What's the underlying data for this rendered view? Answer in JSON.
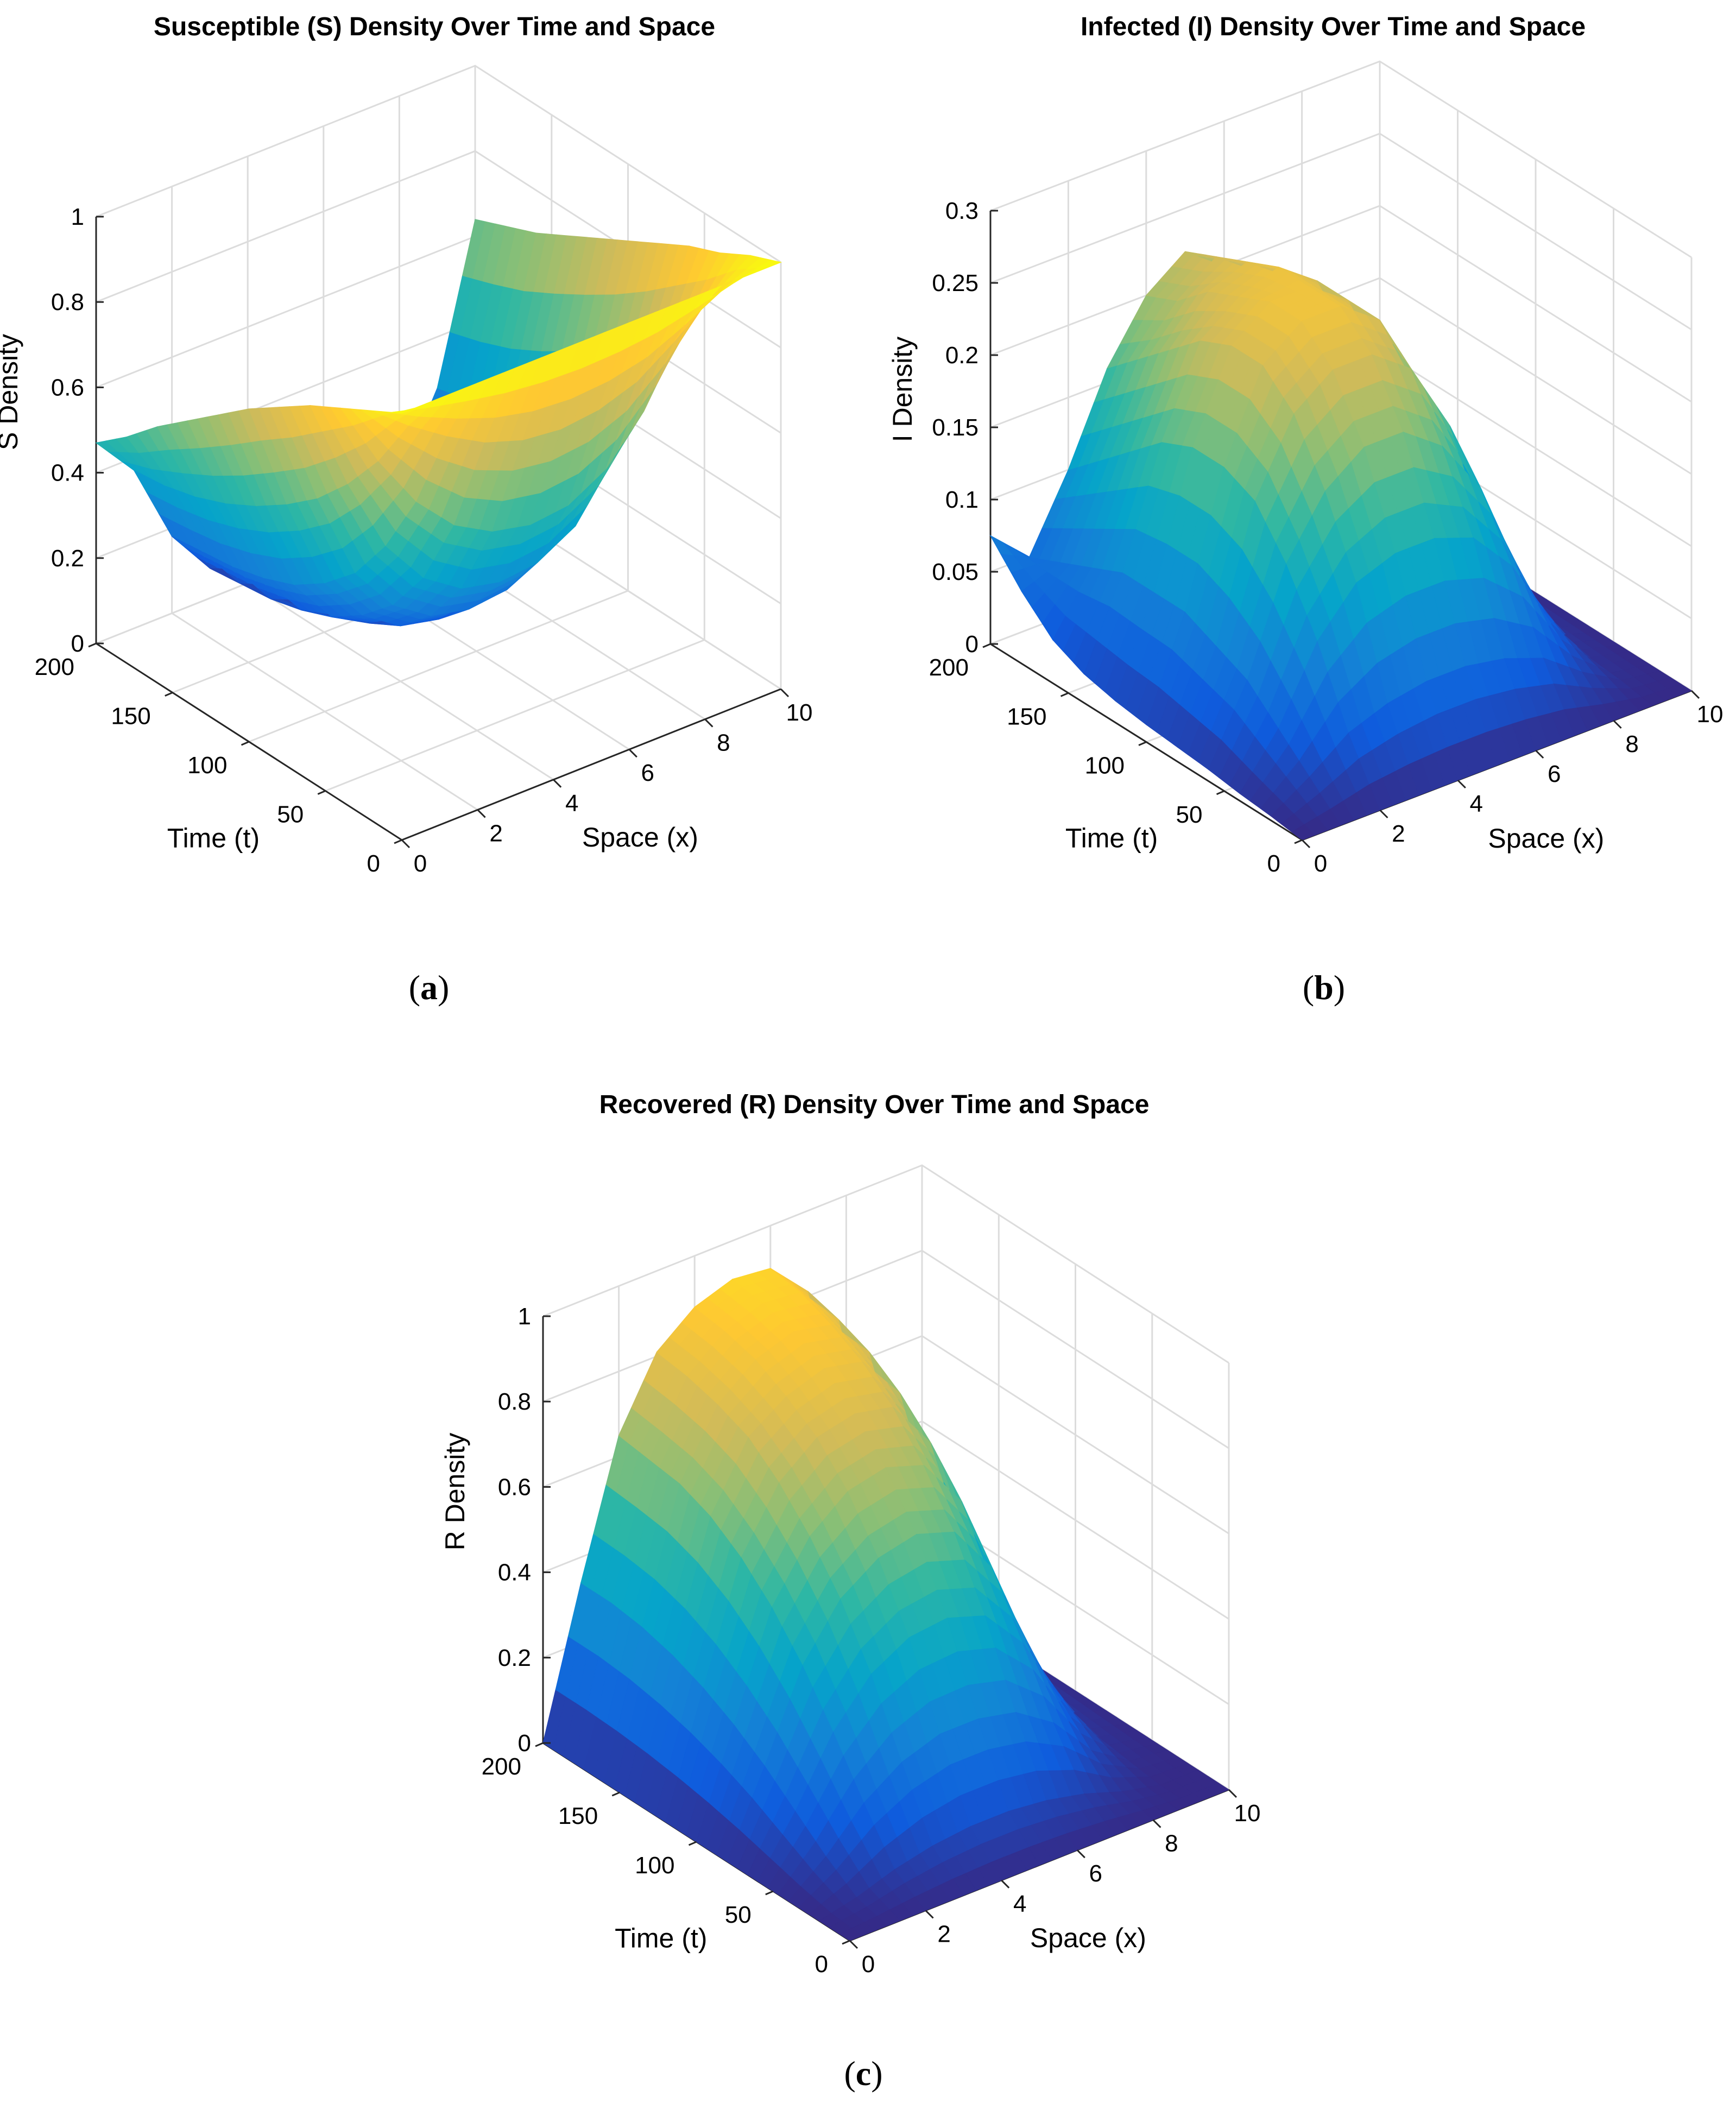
{
  "colors": {
    "colormap": [
      "#352a87",
      "#0f5cdd",
      "#1481d6",
      "#06a4ca",
      "#2eb7a4",
      "#87bf77",
      "#d1bb59",
      "#fec832",
      "#f9fb0e"
    ],
    "grid": "#dcdcdc",
    "axis": "#262626"
  },
  "chart_data": [
    {
      "type": "surface",
      "panel_label": {
        "open": "(",
        "letter": "a",
        "close": ")"
      },
      "title": "Susceptible (S) Density Over Time and Space",
      "xlabel": "Space (x)",
      "ylabel": "Time (t)",
      "zlabel": "S Density",
      "xlim": [
        0,
        10
      ],
      "ylim": [
        0,
        200
      ],
      "zlim": [
        0,
        1
      ],
      "xticks": [
        0,
        2,
        4,
        6,
        8,
        10
      ],
      "yticks": [
        0,
        50,
        100,
        150,
        200
      ],
      "zticks": [
        0,
        0.2,
        0.4,
        0.6,
        0.8,
        1
      ],
      "xtick_labels": [
        "0",
        "2",
        "4",
        "6",
        "8",
        "10"
      ],
      "ytick_labels": [
        "0",
        "50",
        "100",
        "150",
        "200"
      ],
      "ztick_labels": [
        "0",
        "0.2",
        "0.4",
        "0.6",
        "0.8",
        "1"
      ],
      "surface_grid": {
        "x": [
          0,
          1,
          2,
          3,
          4,
          5,
          6,
          7,
          8,
          9,
          10
        ],
        "t": [
          0,
          20,
          40,
          60,
          80,
          100,
          120,
          140,
          160,
          180,
          200
        ],
        "z_by_t": [
          [
            1.0,
            1.0,
            1.0,
            1.0,
            1.0,
            1.0,
            1.0,
            1.0,
            1.0,
            1.0,
            1.0
          ],
          [
            0.96,
            0.89,
            0.83,
            0.78,
            0.75,
            0.74,
            0.75,
            0.78,
            0.84,
            0.91,
            0.97
          ],
          [
            0.92,
            0.76,
            0.63,
            0.54,
            0.49,
            0.47,
            0.48,
            0.53,
            0.63,
            0.78,
            0.93
          ],
          [
            0.88,
            0.66,
            0.48,
            0.37,
            0.31,
            0.29,
            0.3,
            0.35,
            0.47,
            0.66,
            0.9
          ],
          [
            0.83,
            0.58,
            0.37,
            0.26,
            0.2,
            0.18,
            0.19,
            0.24,
            0.35,
            0.56,
            0.86
          ],
          [
            0.78,
            0.52,
            0.3,
            0.19,
            0.13,
            0.11,
            0.12,
            0.16,
            0.26,
            0.48,
            0.82
          ],
          [
            0.72,
            0.47,
            0.25,
            0.14,
            0.09,
            0.07,
            0.08,
            0.11,
            0.2,
            0.42,
            0.78
          ],
          [
            0.66,
            0.43,
            0.22,
            0.11,
            0.06,
            0.05,
            0.05,
            0.08,
            0.16,
            0.37,
            0.74
          ],
          [
            0.6,
            0.4,
            0.2,
            0.09,
            0.05,
            0.04,
            0.04,
            0.06,
            0.13,
            0.33,
            0.7
          ],
          [
            0.53,
            0.38,
            0.19,
            0.08,
            0.04,
            0.03,
            0.03,
            0.05,
            0.11,
            0.3,
            0.67
          ],
          [
            0.47,
            0.37,
            0.18,
            0.07,
            0.03,
            0.02,
            0.02,
            0.04,
            0.1,
            0.28,
            0.64
          ]
        ]
      }
    },
    {
      "type": "surface",
      "panel_label": {
        "open": "(",
        "letter": "b",
        "close": ")"
      },
      "title": "Infected (I) Density Over Time and Space",
      "xlabel": "Space (x)",
      "ylabel": "Time (t)",
      "zlabel": "I Density",
      "xlim": [
        0,
        10
      ],
      "ylim": [
        0,
        200
      ],
      "zlim": [
        0,
        0.3
      ],
      "xticks": [
        0,
        2,
        4,
        6,
        8,
        10
      ],
      "yticks": [
        0,
        50,
        100,
        150,
        200
      ],
      "zticks": [
        0,
        0.05,
        0.1,
        0.15,
        0.2,
        0.25,
        0.3
      ],
      "xtick_labels": [
        "0",
        "2",
        "4",
        "6",
        "8",
        "10"
      ],
      "ytick_labels": [
        "0",
        "50",
        "100",
        "150",
        "200"
      ],
      "ztick_labels": [
        "0",
        "0.05",
        "0.1",
        "0.15",
        "0.2",
        "0.25",
        "0.3"
      ],
      "surface_grid": {
        "x": [
          0,
          1,
          2,
          3,
          4,
          5,
          6,
          7,
          8,
          9,
          10
        ],
        "t": [
          0,
          20,
          40,
          60,
          80,
          100,
          120,
          140,
          160,
          180,
          200
        ],
        "z_by_t": [
          [
            0.0,
            0.0,
            0.0,
            0.0,
            0.0,
            0.0,
            0.0,
            0.0,
            0.0,
            0.0,
            0.0
          ],
          [
            0.003,
            0.02,
            0.04,
            0.05,
            0.055,
            0.055,
            0.05,
            0.04,
            0.02,
            0.004,
            0.0
          ],
          [
            0.005,
            0.04,
            0.09,
            0.12,
            0.13,
            0.13,
            0.12,
            0.09,
            0.04,
            0.006,
            0.0
          ],
          [
            0.008,
            0.06,
            0.13,
            0.17,
            0.19,
            0.19,
            0.17,
            0.13,
            0.06,
            0.008,
            0.0
          ],
          [
            0.01,
            0.07,
            0.16,
            0.21,
            0.23,
            0.23,
            0.21,
            0.16,
            0.07,
            0.01,
            0.0
          ],
          [
            0.012,
            0.08,
            0.17,
            0.23,
            0.25,
            0.25,
            0.23,
            0.17,
            0.08,
            0.012,
            0.0
          ],
          [
            0.015,
            0.08,
            0.17,
            0.23,
            0.25,
            0.25,
            0.23,
            0.17,
            0.08,
            0.012,
            0.0
          ],
          [
            0.02,
            0.08,
            0.16,
            0.22,
            0.24,
            0.25,
            0.23,
            0.17,
            0.08,
            0.012,
            0.0
          ],
          [
            0.03,
            0.07,
            0.14,
            0.2,
            0.23,
            0.24,
            0.22,
            0.16,
            0.07,
            0.01,
            0.0
          ],
          [
            0.05,
            0.06,
            0.12,
            0.18,
            0.21,
            0.23,
            0.21,
            0.15,
            0.07,
            0.01,
            0.0
          ],
          [
            0.075,
            0.05,
            0.1,
            0.16,
            0.2,
            0.22,
            0.2,
            0.14,
            0.06,
            0.01,
            0.0
          ]
        ]
      }
    },
    {
      "type": "surface",
      "panel_label": {
        "open": "(",
        "letter": "c",
        "close": ")"
      },
      "title": "Recovered (R) Density Over Time and Space",
      "xlabel": "Space (x)",
      "ylabel": "Time (t)",
      "zlabel": "R Density",
      "xlim": [
        0,
        10
      ],
      "ylim": [
        0,
        200
      ],
      "zlim": [
        0,
        1
      ],
      "xticks": [
        0,
        2,
        4,
        6,
        8,
        10
      ],
      "yticks": [
        0,
        50,
        100,
        150,
        200
      ],
      "zticks": [
        0,
        0.2,
        0.4,
        0.6,
        0.8,
        1
      ],
      "xtick_labels": [
        "0",
        "2",
        "4",
        "6",
        "8",
        "10"
      ],
      "ytick_labels": [
        "0",
        "50",
        "100",
        "150",
        "200"
      ],
      "ztick_labels": [
        "0",
        "0.2",
        "0.4",
        "0.6",
        "0.8",
        "1"
      ],
      "surface_grid": {
        "x": [
          0,
          1,
          2,
          3,
          4,
          5,
          6,
          7,
          8,
          9,
          10
        ],
        "t": [
          0,
          20,
          40,
          60,
          80,
          100,
          120,
          140,
          160,
          180,
          200
        ],
        "z_by_t": [
          [
            0.0,
            0.0,
            0.0,
            0.0,
            0.0,
            0.0,
            0.0,
            0.0,
            0.0,
            0.0,
            0.0
          ],
          [
            0.0,
            0.02,
            0.05,
            0.07,
            0.08,
            0.08,
            0.07,
            0.05,
            0.02,
            0.0,
            0.0
          ],
          [
            0.0,
            0.07,
            0.16,
            0.22,
            0.25,
            0.25,
            0.23,
            0.17,
            0.07,
            0.01,
            0.0
          ],
          [
            0.0,
            0.13,
            0.28,
            0.38,
            0.43,
            0.44,
            0.41,
            0.31,
            0.14,
            0.02,
            0.0
          ],
          [
            0.0,
            0.19,
            0.39,
            0.51,
            0.57,
            0.59,
            0.56,
            0.44,
            0.21,
            0.03,
            0.0
          ],
          [
            0.0,
            0.24,
            0.48,
            0.61,
            0.68,
            0.7,
            0.67,
            0.55,
            0.28,
            0.04,
            0.0
          ],
          [
            0.0,
            0.28,
            0.55,
            0.69,
            0.76,
            0.78,
            0.76,
            0.64,
            0.33,
            0.05,
            0.0
          ],
          [
            0.0,
            0.31,
            0.6,
            0.75,
            0.81,
            0.84,
            0.82,
            0.71,
            0.38,
            0.06,
            0.0
          ],
          [
            0.0,
            0.33,
            0.63,
            0.78,
            0.85,
            0.88,
            0.86,
            0.76,
            0.41,
            0.06,
            0.0
          ],
          [
            0.0,
            0.34,
            0.64,
            0.8,
            0.87,
            0.9,
            0.89,
            0.79,
            0.43,
            0.07,
            0.0
          ],
          [
            0.0,
            0.34,
            0.65,
            0.81,
            0.88,
            0.91,
            0.9,
            0.81,
            0.45,
            0.07,
            0.0
          ]
        ]
      }
    }
  ]
}
